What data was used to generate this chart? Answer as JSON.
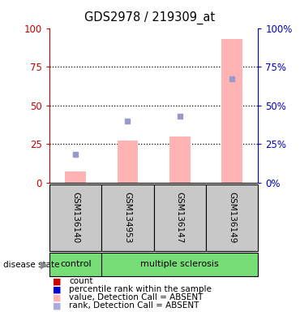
{
  "title": "GDS2978 / 219309_at",
  "samples": [
    "GSM136140",
    "GSM134953",
    "GSM136147",
    "GSM136149"
  ],
  "bar_values_pink": [
    7,
    27,
    30,
    93
  ],
  "rank_values_blue": [
    18,
    40,
    43,
    67
  ],
  "ylim": [
    0,
    100
  ],
  "yticks": [
    0,
    25,
    50,
    75,
    100
  ],
  "left_axis_color": "#cc0000",
  "right_axis_color": "#0000cc",
  "bar_color": "#ffb3b3",
  "rank_color": "#9999cc",
  "background_label": "#c8c8c8",
  "background_green": "#77dd77",
  "legend_items": [
    {
      "label": "count",
      "color": "#cc0000"
    },
    {
      "label": "percentile rank within the sample",
      "color": "#0000cc"
    },
    {
      "label": "value, Detection Call = ABSENT",
      "color": "#ffb3b3"
    },
    {
      "label": "rank, Detection Call = ABSENT",
      "color": "#aaaadd"
    }
  ]
}
